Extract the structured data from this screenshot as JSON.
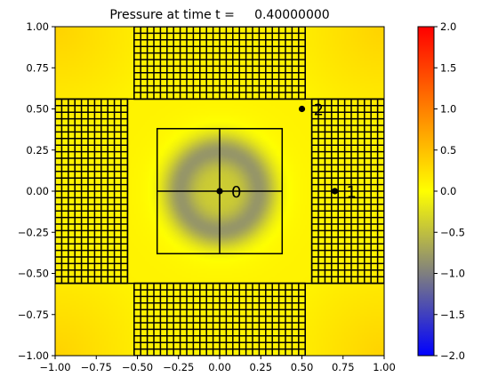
{
  "chart_data": {
    "type": "heatmap",
    "title": "Pressure at time t =     0.40000000",
    "xlim": [
      -1.0,
      1.0
    ],
    "ylim": [
      -1.0,
      1.0
    ],
    "x_ticks": [
      -1.0,
      -0.75,
      -0.5,
      -0.25,
      0.0,
      0.25,
      0.5,
      0.75,
      1.0
    ],
    "y_ticks": [
      -1.0,
      -0.75,
      -0.5,
      -0.25,
      0.0,
      0.25,
      0.5,
      0.75,
      1.0
    ],
    "x_tick_labels": [
      "−1.00",
      "−0.75",
      "−0.50",
      "−0.25",
      "0.00",
      "0.25",
      "0.50",
      "0.75",
      "1.00"
    ],
    "y_tick_labels": [
      "−1.00",
      "−0.75",
      "−0.50",
      "−0.25",
      "0.00",
      "0.25",
      "0.50",
      "0.75",
      "1.00"
    ],
    "colorbar": {
      "range": [
        -2.0,
        2.0
      ],
      "ticks": [
        -2.0,
        -1.5,
        -1.0,
        -0.5,
        0.0,
        0.5,
        1.0,
        1.5,
        2.0
      ],
      "tick_labels": [
        "−2.0",
        "−1.5",
        "−1.0",
        "−0.5",
        "0.0",
        "0.5",
        "1.0",
        "1.5",
        "2.0"
      ],
      "colors": [
        {
          "value": -2.0,
          "color": "#0000ff"
        },
        {
          "value": -1.0,
          "color": "#7f7f7f"
        },
        {
          "value": 0.0,
          "color": "#ffff00"
        },
        {
          "value": 1.0,
          "color": "#ff8000"
        },
        {
          "value": 2.0,
          "color": "#ff0000"
        }
      ]
    },
    "pressure_field": {
      "background": 0.1,
      "pulse_center": [
        0.0,
        0.0
      ],
      "pulse_radius": 0.4,
      "pulse_width": 0.1,
      "pulse_min": -0.75,
      "center_value": -0.4,
      "corner_value": 0.35
    },
    "refined_regions": [
      {
        "x": [
          -0.52,
          0.52
        ],
        "y": [
          0.56,
          1.0
        ],
        "cell": 0.04
      },
      {
        "x": [
          -0.52,
          0.52
        ],
        "y": [
          -1.0,
          -0.56
        ],
        "cell": 0.04
      },
      {
        "x": [
          -1.0,
          -0.56
        ],
        "y": [
          -0.56,
          0.56
        ],
        "cell": 0.04
      },
      {
        "x": [
          0.56,
          1.0
        ],
        "y": [
          -0.56,
          0.56
        ],
        "cell": 0.04
      }
    ],
    "grid_lines": {
      "horizontal_y": [
        0.56,
        -0.56
      ],
      "center_box": {
        "x": [
          -0.38,
          0.38
        ],
        "y": [
          -0.38,
          0.38
        ]
      },
      "crosshair": {
        "x": 0.0,
        "y": 0.0
      }
    },
    "gauges": [
      {
        "label": "0",
        "x": 0.0,
        "y": 0.0
      },
      {
        "label": "1",
        "x": 0.7,
        "y": 0.0
      },
      {
        "label": "2",
        "x": 0.5,
        "y": 0.5
      }
    ]
  }
}
